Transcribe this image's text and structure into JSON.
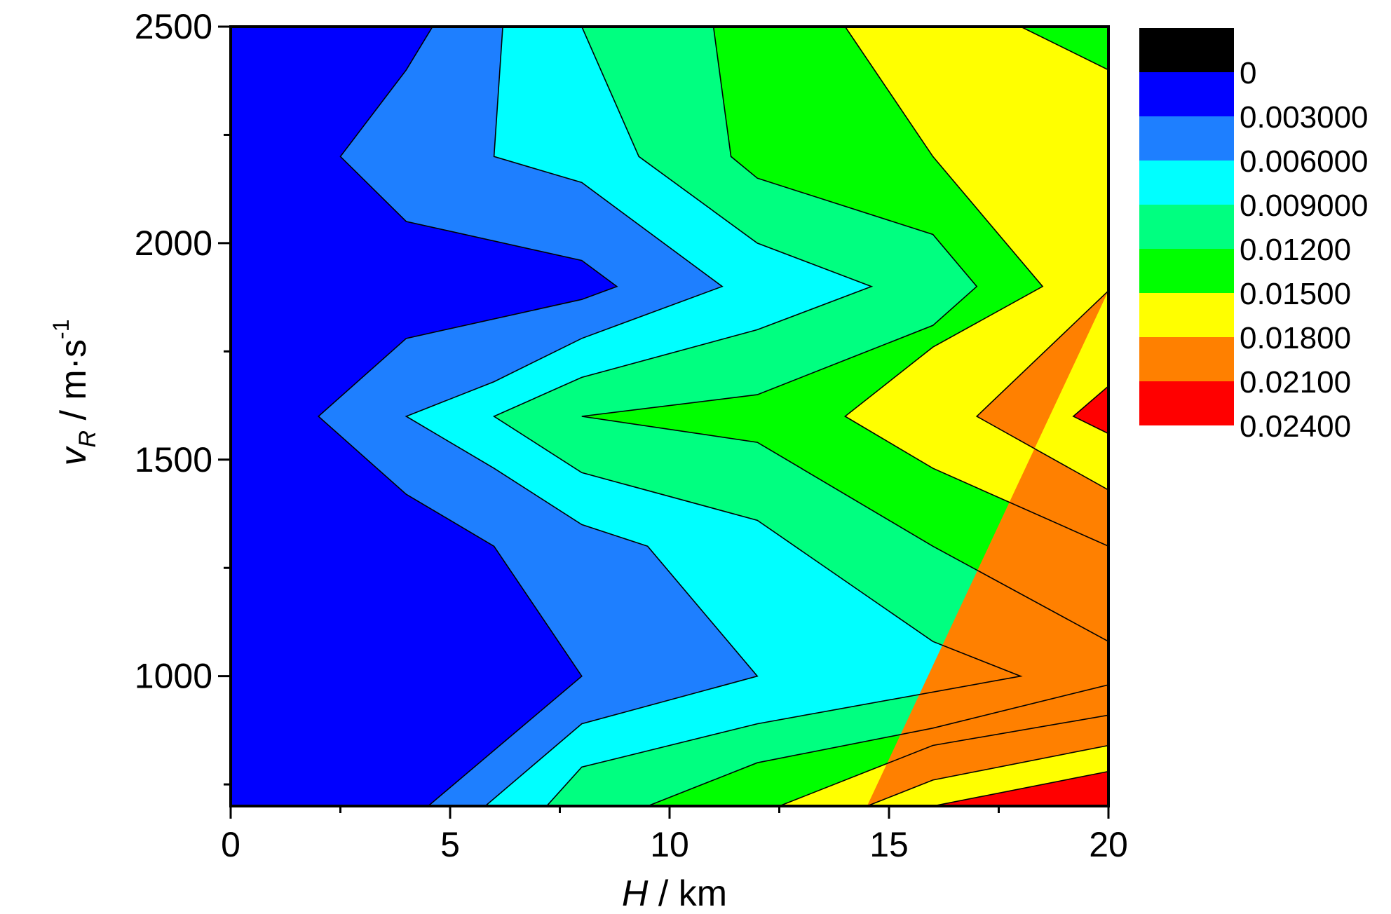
{
  "chart_data": {
    "type": "contour",
    "xlabel": {
      "symbol": "H",
      "unit": " / km"
    },
    "ylabel": {
      "symbol": "v",
      "subscript": "R",
      "unit": " / m·s",
      "superscript": "-1"
    },
    "xlim": [
      0,
      20
    ],
    "ylim": [
      700,
      2500
    ],
    "x_ticks": [
      0,
      5,
      10,
      15,
      20
    ],
    "y_ticks": [
      1000,
      1500,
      2000,
      2500
    ],
    "x_minor_step": 2.5,
    "y_minor_step": 250,
    "levels": [
      {
        "label": "0",
        "color": "#000000"
      },
      {
        "label": "0.003000",
        "color": "#0000FF"
      },
      {
        "label": "0.006000",
        "color": "#1E7FFF"
      },
      {
        "label": "0.009000",
        "color": "#00FFFF"
      },
      {
        "label": "0.01200",
        "color": "#00FF80"
      },
      {
        "label": "0.01500",
        "color": "#00FF00"
      },
      {
        "label": "0.01800",
        "color": "#FFFF00"
      },
      {
        "label": "0.02100",
        "color": "#FF8000"
      },
      {
        "label": "0.02400",
        "color": "#FF0000"
      }
    ],
    "contour_lines": [
      {
        "level": "0.003000",
        "points": [
          [
            4.5,
            700
          ],
          [
            8,
            1000
          ],
          [
            6,
            1300
          ],
          [
            4,
            1420
          ],
          [
            2,
            1600
          ],
          [
            4,
            1780
          ],
          [
            8,
            1870
          ],
          [
            8.8,
            1900
          ],
          [
            8,
            1960
          ],
          [
            4,
            2050
          ],
          [
            2.5,
            2200
          ],
          [
            4,
            2400
          ],
          [
            4.6,
            2500
          ]
        ]
      },
      {
        "level": "0.006000",
        "points": [
          [
            5.8,
            700
          ],
          [
            8,
            890
          ],
          [
            12,
            1000
          ],
          [
            9.5,
            1300
          ],
          [
            8,
            1350
          ],
          [
            6,
            1480
          ],
          [
            4,
            1600
          ],
          [
            6,
            1680
          ],
          [
            8,
            1780
          ],
          [
            11.2,
            1900
          ],
          [
            8,
            2140
          ],
          [
            6,
            2200
          ],
          [
            6.2,
            2500
          ]
        ]
      },
      {
        "level": "0.009000",
        "points": [
          [
            7.2,
            700
          ],
          [
            8,
            790
          ],
          [
            12,
            890
          ],
          [
            18,
            1000
          ],
          [
            16,
            1080
          ],
          [
            12,
            1360
          ],
          [
            8,
            1470
          ],
          [
            6,
            1600
          ],
          [
            8,
            1690
          ],
          [
            12,
            1800
          ],
          [
            14.6,
            1900
          ],
          [
            12,
            2000
          ],
          [
            9.3,
            2200
          ],
          [
            8,
            2500
          ]
        ]
      },
      {
        "level": "0.01200",
        "points": [
          [
            9.5,
            700
          ],
          [
            12,
            800
          ],
          [
            16,
            880
          ],
          [
            20,
            980
          ],
          [
            20,
            1080
          ],
          [
            16,
            1300
          ],
          [
            12,
            1540
          ],
          [
            8,
            1600
          ],
          [
            12,
            1650
          ],
          [
            16,
            1810
          ],
          [
            17,
            1900
          ],
          [
            16,
            2020
          ],
          [
            12,
            2150
          ],
          [
            11.4,
            2200
          ],
          [
            11,
            2500
          ]
        ]
      },
      {
        "level": "0.01500",
        "points": [
          [
            12.5,
            700
          ],
          [
            16,
            840
          ],
          [
            20,
            910
          ],
          [
            20,
            1300
          ],
          [
            16,
            1480
          ],
          [
            14,
            1600
          ],
          [
            16,
            1760
          ],
          [
            18.5,
            1900
          ],
          [
            16,
            2200
          ],
          [
            14,
            2500
          ]
        ]
      },
      {
        "level": "0.01800",
        "points": [
          [
            14.5,
            700
          ],
          [
            16,
            760
          ],
          [
            20,
            840
          ],
          [
            20,
            1430
          ],
          [
            17,
            1600
          ],
          [
            20,
            1890
          ]
        ]
      },
      {
        "level": "0.01800",
        "points": [
          [
            18,
            2500
          ],
          [
            20,
            2400
          ]
        ]
      },
      {
        "level": "0.02100",
        "points": [
          [
            16,
            700
          ],
          [
            20,
            780
          ]
        ]
      },
      {
        "level": "0.02100",
        "points": [
          [
            20,
            1560
          ],
          [
            19.2,
            1600
          ],
          [
            20,
            1670
          ]
        ]
      }
    ]
  }
}
